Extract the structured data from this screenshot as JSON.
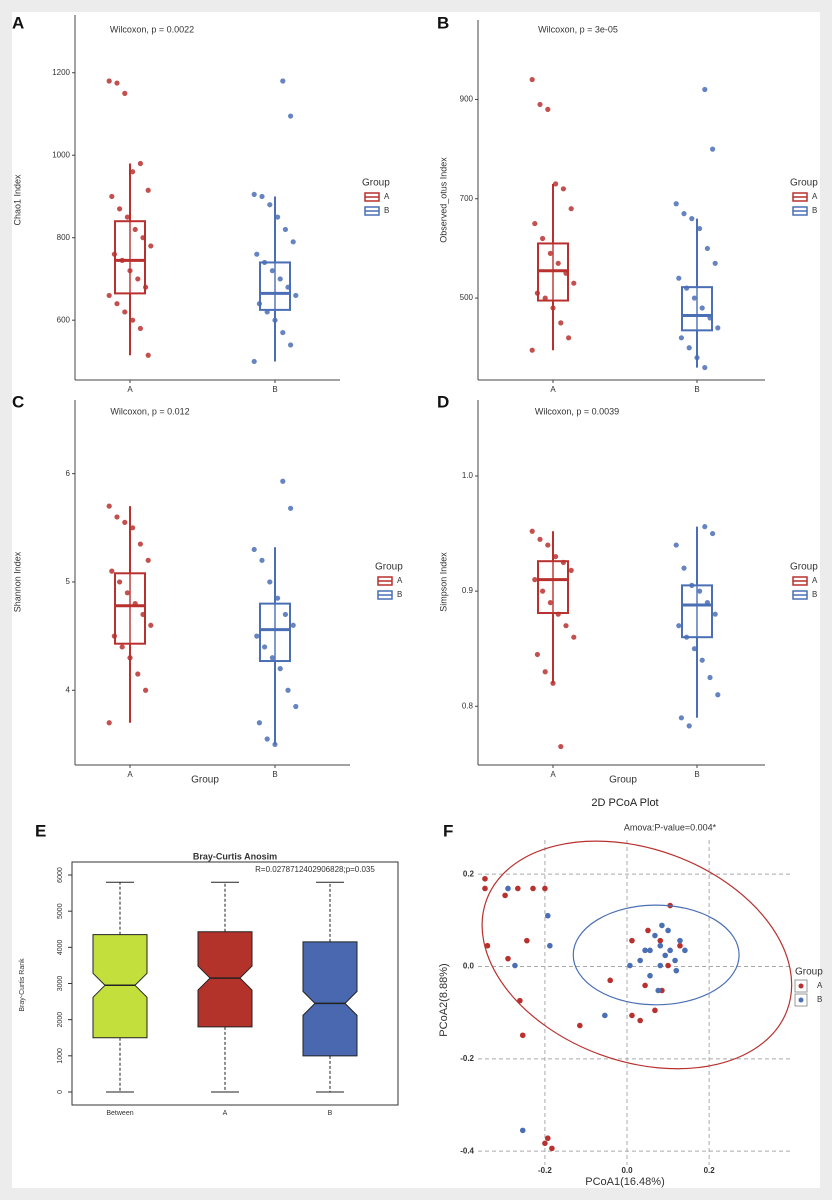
{
  "chart_data": [
    {
      "type": "boxplot",
      "panel_label": "A",
      "annotation": "Wilcoxon, p = 0.0022",
      "ylabel": "Chao1 Index",
      "legend_title": "Group",
      "categories": [
        "A",
        "B"
      ],
      "ylim": [
        455,
        1340
      ],
      "yticks": [
        600,
        800,
        1000,
        1200
      ],
      "series": [
        {
          "name": "A",
          "color": "#b8312f",
          "whisker_low": 515,
          "q1": 665,
          "median": 745,
          "q3": 840,
          "whisker_high": 980,
          "points": [
            1180,
            1175,
            1150,
            960,
            980,
            915,
            900,
            870,
            850,
            820,
            800,
            780,
            760,
            745,
            720,
            700,
            680,
            660,
            640,
            620,
            600,
            580,
            515
          ]
        },
        {
          "name": "B",
          "color": "#4a6fb5",
          "whisker_low": 500,
          "q1": 625,
          "median": 665,
          "q3": 740,
          "whisker_high": 900,
          "points": [
            1180,
            1095,
            905,
            900,
            880,
            850,
            820,
            790,
            760,
            740,
            720,
            700,
            680,
            660,
            640,
            620,
            600,
            570,
            540,
            500
          ]
        }
      ]
    },
    {
      "type": "boxplot",
      "panel_label": "B",
      "annotation": "Wilcoxon, p = 3e-05",
      "ylabel": "Observed_otus Index",
      "legend_title": "Group",
      "categories": [
        "A",
        "B"
      ],
      "ylim": [
        335,
        1060
      ],
      "yticks": [
        500,
        700,
        900
      ],
      "series": [
        {
          "name": "A",
          "color": "#b8312f",
          "whisker_low": 395,
          "q1": 495,
          "median": 555,
          "q3": 610,
          "whisker_high": 730,
          "points": [
            940,
            890,
            880,
            730,
            720,
            680,
            650,
            620,
            590,
            570,
            550,
            530,
            510,
            500,
            480,
            450,
            420,
            395
          ]
        },
        {
          "name": "B",
          "color": "#4a6fb5",
          "whisker_low": 360,
          "q1": 435,
          "median": 465,
          "q3": 522,
          "whisker_high": 660,
          "points": [
            920,
            800,
            690,
            670,
            660,
            640,
            600,
            570,
            540,
            520,
            500,
            480,
            460,
            440,
            420,
            400,
            380,
            360
          ]
        }
      ]
    },
    {
      "type": "boxplot",
      "panel_label": "C",
      "annotation": "Wilcoxon, p = 0.012",
      "ylabel": "Shannon Index",
      "xlabel": "Group",
      "legend_title": "Group",
      "categories": [
        "A",
        "B"
      ],
      "ylim": [
        3.31,
        6.68
      ],
      "yticks": [
        4,
        5,
        6
      ],
      "series": [
        {
          "name": "A",
          "color": "#b8312f",
          "whisker_low": 3.7,
          "q1": 4.43,
          "median": 4.78,
          "q3": 5.08,
          "whisker_high": 5.7,
          "points": [
            5.7,
            5.6,
            5.55,
            5.5,
            5.35,
            5.2,
            5.1,
            5.0,
            4.9,
            4.8,
            4.7,
            4.6,
            4.5,
            4.4,
            4.3,
            4.15,
            4.0,
            3.7
          ]
        },
        {
          "name": "B",
          "color": "#4a6fb5",
          "whisker_low": 3.5,
          "q1": 4.27,
          "median": 4.56,
          "q3": 4.8,
          "whisker_high": 5.32,
          "points": [
            5.93,
            5.68,
            5.3,
            5.2,
            5.0,
            4.85,
            4.7,
            4.6,
            4.5,
            4.4,
            4.3,
            4.2,
            4.0,
            3.85,
            3.7,
            3.55,
            3.5
          ]
        }
      ]
    },
    {
      "type": "boxplot",
      "panel_label": "D",
      "annotation": "Wilcoxon, p = 0.0039",
      "ylabel": "Simpson Index",
      "xlabel": "Group",
      "legend_title": "Group",
      "categories": [
        "A",
        "B"
      ],
      "ylim": [
        0.749,
        1.066
      ],
      "yticks": [
        0.8,
        0.9,
        {
          "value": 1,
          "label": "1.0"
        }
      ],
      "series": [
        {
          "name": "A",
          "color": "#b8312f",
          "whisker_low": 0.82,
          "q1": 0.881,
          "median": 0.91,
          "q3": 0.926,
          "whisker_high": 0.952,
          "points": [
            0.952,
            0.945,
            0.94,
            0.93,
            0.925,
            0.918,
            0.91,
            0.9,
            0.89,
            0.88,
            0.87,
            0.86,
            0.845,
            0.83,
            0.82,
            0.765
          ]
        },
        {
          "name": "B",
          "color": "#4a6fb5",
          "whisker_low": 0.79,
          "q1": 0.86,
          "median": 0.888,
          "q3": 0.905,
          "whisker_high": 0.956,
          "points": [
            0.956,
            0.95,
            0.94,
            0.92,
            0.905,
            0.9,
            0.89,
            0.88,
            0.87,
            0.86,
            0.85,
            0.84,
            0.825,
            0.81,
            0.79,
            0.783
          ]
        }
      ]
    },
    {
      "type": "notched_box",
      "panel_label": "E",
      "title": "Bray-Curtis Anosim",
      "annotation": "R=0.0278712402906828;p=0.035",
      "ylabel": "Bray-Curtis Rank",
      "categories": [
        "Between",
        "A",
        "B"
      ],
      "ylim": [
        -360,
        6360
      ],
      "yticks": [
        0,
        1000,
        2000,
        3000,
        4000,
        5000,
        6000
      ],
      "series": [
        {
          "color": "#c2df3c",
          "whisker_low": 0,
          "q1": 1500,
          "median": 2950,
          "q3": 4350,
          "whisker_high": 5800
        },
        {
          "color": "#b3332b",
          "whisker_low": 0,
          "q1": 1800,
          "median": 3150,
          "q3": 4430,
          "whisker_high": 5800
        },
        {
          "color": "#4a68b0",
          "whisker_low": 0,
          "q1": 1000,
          "median": 2450,
          "q3": 4150,
          "whisker_high": 5800
        }
      ]
    },
    {
      "type": "scatter",
      "panel_label": "F",
      "title": "2D PCoA Plot",
      "annotation": "Amova:P-value=0.004*",
      "xlabel": "PCoA1(16.48%)",
      "ylabel": "PCoA2(8.88%)",
      "legend_title": "Group",
      "grid": true,
      "xlim": [
        -0.363,
        0.397
      ],
      "ylim": [
        -0.43,
        0.274
      ],
      "xticks": [
        -0.2,
        {
          "value": 0,
          "label": "0.0"
        },
        0.2
      ],
      "yticks": [
        -0.4,
        -0.2,
        {
          "value": 0,
          "label": "0.0"
        },
        0.2
      ],
      "series": [
        {
          "name": "A",
          "color": "#b8312f",
          "ellipse": {
            "cx": 0.024,
            "cy": 0.025,
            "rx": 0.39,
            "ry": 0.23,
            "angle": 20
          },
          "x": [
            -0.346,
            -0.346,
            -0.34,
            -0.297,
            -0.266,
            -0.229,
            -0.2,
            -0.244,
            -0.29,
            -0.261,
            -0.254,
            -0.193,
            -0.183,
            -0.2,
            -0.115,
            -0.041,
            0.012,
            0.032,
            0.068,
            0.085,
            0.1,
            0.081,
            0.051,
            0.129,
            0.012,
            0.044,
            0.105
          ],
          "y": [
            0.19,
            0.169,
            0.045,
            0.154,
            0.169,
            0.169,
            0.169,
            0.056,
            0.017,
            -0.074,
            -0.149,
            -0.372,
            -0.394,
            -0.383,
            -0.128,
            -0.03,
            -0.106,
            -0.117,
            -0.095,
            -0.052,
            0.002,
            0.056,
            0.078,
            0.045,
            0.056,
            -0.041,
            0.132
          ]
        },
        {
          "name": "B",
          "color": "#4a6fb5",
          "ellipse": {
            "cx": 0.071,
            "cy": 0.025,
            "rx": 0.202,
            "ry": 0.108,
            "angle": 0
          },
          "x": [
            -0.29,
            -0.273,
            -0.254,
            -0.188,
            -0.193,
            -0.054,
            0.007,
            0.032,
            0.056,
            0.068,
            0.081,
            0.093,
            0.105,
            0.117,
            0.129,
            0.141,
            0.081,
            0.056,
            0.076,
            0.044,
            0.1,
            0.12,
            0.085
          ],
          "y": [
            0.169,
            0.002,
            -0.355,
            0.045,
            0.11,
            -0.106,
            0.002,
            0.013,
            0.035,
            0.067,
            0.045,
            0.024,
            0.035,
            0.013,
            0.056,
            0.035,
            0.002,
            -0.02,
            -0.052,
            0.035,
            0.078,
            -0.009,
            0.089
          ]
        }
      ]
    }
  ]
}
